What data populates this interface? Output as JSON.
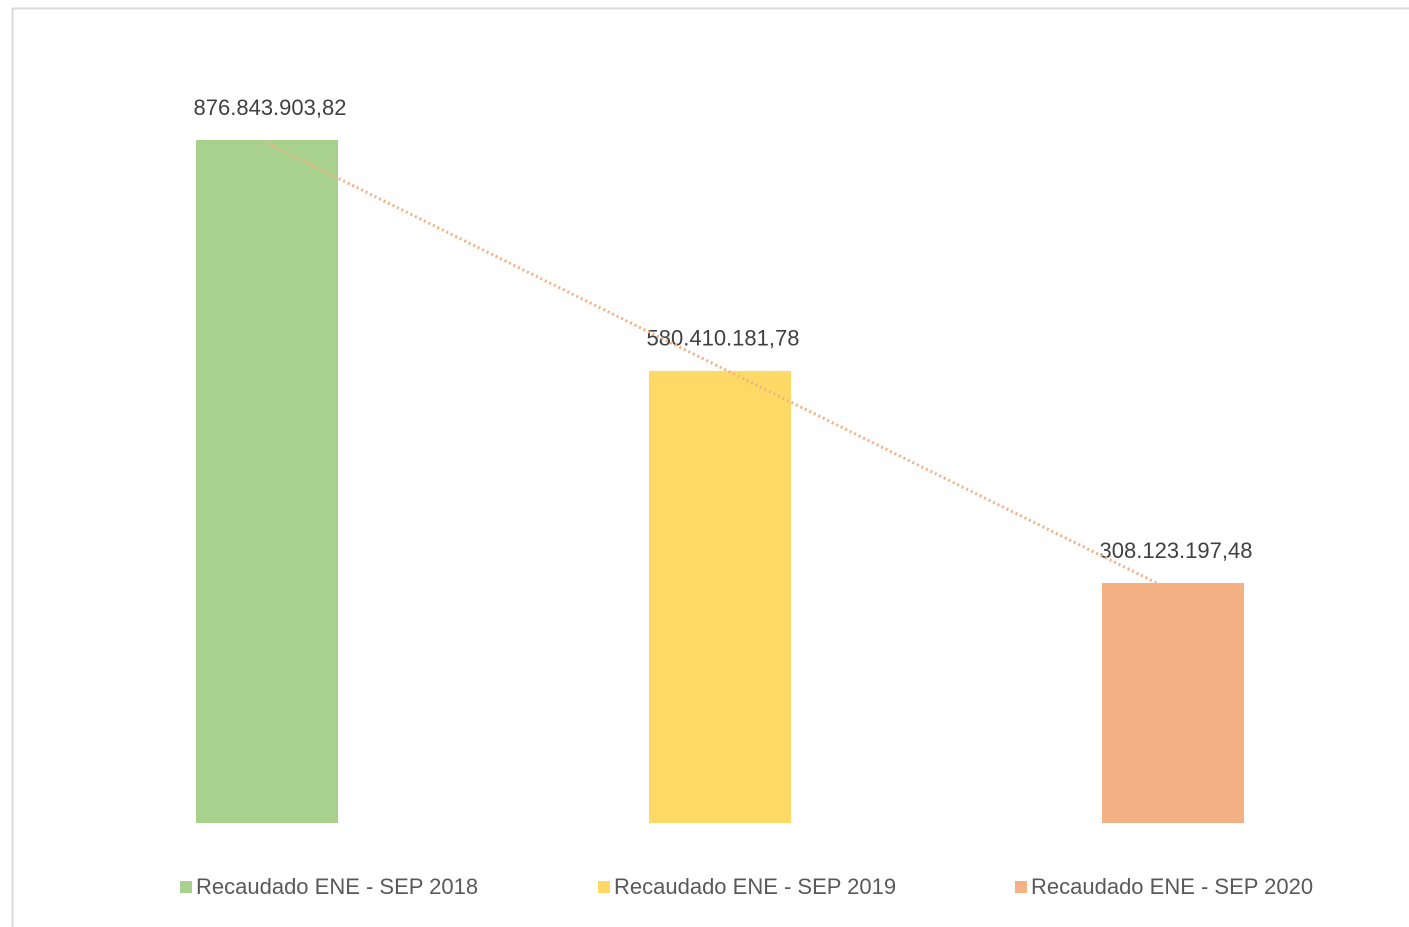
{
  "chart_data": {
    "type": "bar",
    "series": [
      {
        "name": "Recaudado ENE - SEP 2018",
        "color": "#a9d18e",
        "values": [
          876843903.82
        ],
        "value_labels": [
          "876.843.903,82"
        ]
      },
      {
        "name": "Recaudado ENE - SEP 2019",
        "color": "#ffd966",
        "values": [
          580410181.78
        ],
        "value_labels": [
          "580.410.181,78"
        ]
      },
      {
        "name": "Recaudado ENE - SEP 2020",
        "color": "#f4b183",
        "values": [
          308123197.48
        ],
        "value_labels": [
          "308.123.197,48"
        ]
      }
    ],
    "trendline": {
      "type": "linear",
      "color": "#f4b183",
      "style": "dotted"
    },
    "legend": "bottom"
  }
}
